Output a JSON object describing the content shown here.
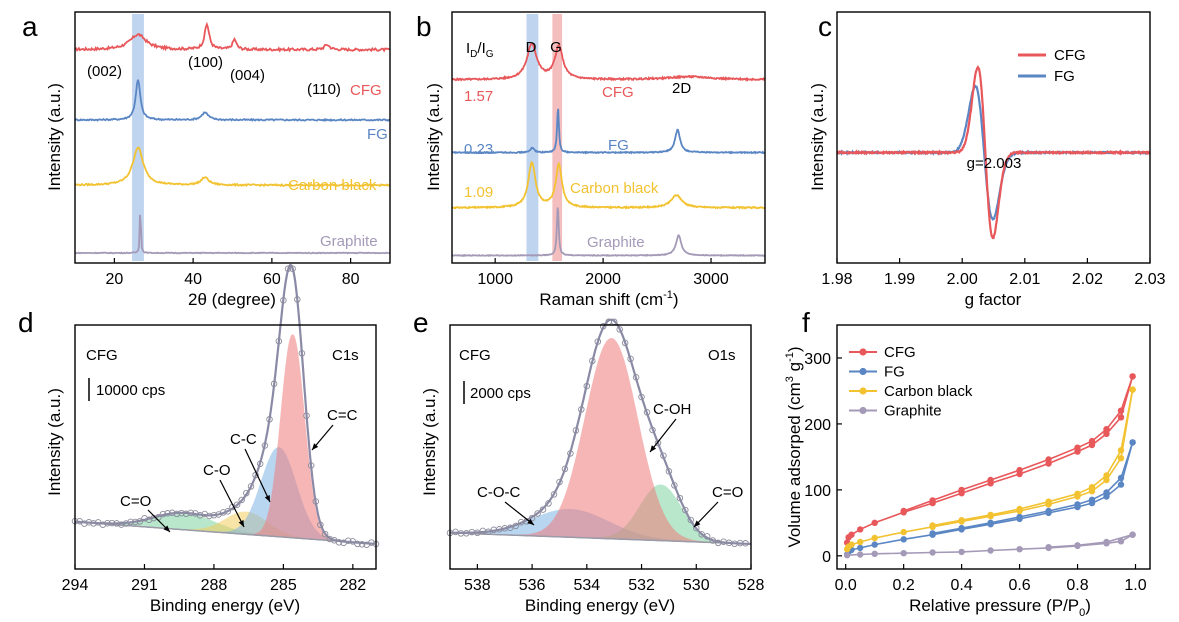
{
  "colors": {
    "cfg": "#e8575a",
    "fg": "#5a86c4",
    "cb": "#f2c230",
    "gr": "#a49ab8",
    "band_blue": "#a9c6ea",
    "band_red": "#f0a8a8",
    "axis": "#000000",
    "envelope": "#8b8aa6"
  },
  "chart_data": [
    {
      "id": "a",
      "panel_label": "a",
      "type": "line",
      "title": "",
      "xlabel": "2θ (degree)",
      "ylabel": "Intensity (a.u.)",
      "xlim": [
        10,
        90
      ],
      "xticks": [
        20,
        40,
        60,
        80
      ],
      "yticks": false,
      "highlight_band": [
        24.5,
        27.5
      ],
      "series": [
        {
          "name": "CFG",
          "color_key": "cfg",
          "baseline": 0.85,
          "noise": 0.01,
          "peaks": [
            [
              26,
              0.06,
              2.5
            ],
            [
              43.5,
              0.1,
              0.7
            ],
            [
              50.5,
              0.04,
              0.6
            ],
            [
              74,
              0.02,
              0.8
            ]
          ]
        },
        {
          "name": "FG",
          "color_key": "fg",
          "baseline": 0.57,
          "noise": 0.006,
          "peaks": [
            [
              26,
              0.16,
              0.7
            ],
            [
              43,
              0.03,
              1.0
            ]
          ]
        },
        {
          "name": "Carbon black",
          "color_key": "cb",
          "baseline": 0.31,
          "noise": 0.006,
          "peaks": [
            [
              26,
              0.15,
              1.6
            ],
            [
              43,
              0.03,
              1.2
            ]
          ]
        },
        {
          "name": "Graphite",
          "color_key": "gr",
          "baseline": 0.04,
          "noise": 0.003,
          "peaks": [
            [
              26.6,
              0.26,
              0.12
            ]
          ]
        }
      ],
      "labels": {
        "series": [
          "CFG",
          "FG",
          "Carbon black",
          "Graphite"
        ],
        "peaks": [
          "(002)",
          "(100)",
          "(004)",
          "(110)"
        ]
      }
    },
    {
      "id": "b",
      "panel_label": "b",
      "type": "line",
      "title": "",
      "xlabel": "Raman shift (cm",
      "xlabel_sup": "-1",
      "xlabel_end": ")",
      "ylabel": "Intensity (a.u.)",
      "xlim": [
        600,
        3500
      ],
      "xticks": [
        1000,
        2000,
        3000
      ],
      "yticks": false,
      "bands": [
        {
          "name": "D",
          "range": [
            1290,
            1400
          ],
          "color_key": "band_blue"
        },
        {
          "name": "G",
          "range": [
            1530,
            1620
          ],
          "color_key": "band_red"
        }
      ],
      "ratio_header": "I",
      "ratio_sub_d": "D",
      "ratio_slash": "/I",
      "ratio_sub_g": "G",
      "ratios": [
        "1.57",
        "0.23",
        "1.09"
      ],
      "series": [
        {
          "name": "CFG",
          "id_ig": "1.57",
          "color_key": "cfg",
          "baseline": 0.73,
          "noise": 0.006,
          "peaks": [
            [
              1340,
              0.14,
              55
            ],
            [
              1590,
              0.13,
              45
            ],
            [
              2800,
              0.012,
              250
            ]
          ]
        },
        {
          "name": "FG",
          "id_ig": "0.23",
          "color_key": "fg",
          "baseline": 0.44,
          "noise": 0.004,
          "peaks": [
            [
              1345,
              0.02,
              20
            ],
            [
              1582,
              0.18,
              10
            ],
            [
              2690,
              0.09,
              28
            ]
          ]
        },
        {
          "name": "Carbon black",
          "id_ig": "1.09",
          "color_key": "cb",
          "baseline": 0.22,
          "noise": 0.005,
          "peaks": [
            [
              1340,
              0.18,
              40
            ],
            [
              1590,
              0.17,
              35
            ],
            [
              2680,
              0.05,
              60
            ]
          ]
        },
        {
          "name": "Graphite",
          "color_key": "gr",
          "baseline": 0.03,
          "noise": 0.003,
          "peaks": [
            [
              1580,
              0.2,
              10
            ],
            [
              2700,
              0.08,
              30
            ]
          ]
        }
      ],
      "labels": {
        "series": [
          "CFG",
          "FG",
          "Carbon black",
          "Graphite"
        ],
        "extra": "2D"
      }
    },
    {
      "id": "c",
      "panel_label": "c",
      "type": "line",
      "title": "",
      "xlabel": "g factor",
      "ylabel": "Intensity (a.u.)",
      "xlim": [
        1.98,
        2.03
      ],
      "xticks": [
        "1.98",
        "1.99",
        "2.00",
        "2.01",
        "2.02",
        "2.03"
      ],
      "yticks": false,
      "annotation": "g=2.003",
      "legend": {
        "position": "top-right",
        "entries": [
          "CFG",
          "FG"
        ]
      },
      "series": [
        {
          "name": "CFG",
          "color_key": "cfg",
          "center": 2.0037,
          "amplitude": 1.0,
          "width": 0.0012
        },
        {
          "name": "FG",
          "color_key": "fg",
          "center": 2.0035,
          "amplitude": 0.78,
          "width": 0.0014
        }
      ]
    },
    {
      "id": "d",
      "panel_label": "d",
      "type": "area",
      "title": "",
      "xlabel": "Binding energy (eV)",
      "ylabel": "Intensity (a.u.)",
      "xlim": [
        294,
        281
      ],
      "xticks": [
        294,
        291,
        288,
        285,
        282
      ],
      "yticks": false,
      "sample": "CFG",
      "core_level": "C1s",
      "scale_bar": "10000 cps",
      "components": [
        {
          "name": "C=C",
          "center": 284.6,
          "height": 0.73,
          "width": 0.5,
          "color": "#ef7c7c"
        },
        {
          "name": "C-C",
          "center": 285.2,
          "height": 0.32,
          "width": 0.75,
          "color": "#7fb6e4"
        },
        {
          "name": "C-O",
          "center": 286.6,
          "height": 0.08,
          "width": 0.9,
          "color": "#f3cf5e"
        },
        {
          "name": "C=O",
          "center": 289.3,
          "height": 0.06,
          "width": 1.3,
          "color": "#7fd4a3"
        }
      ],
      "background": {
        "high_be": 0.08,
        "low_be": 0.0
      }
    },
    {
      "id": "e",
      "panel_label": "e",
      "type": "area",
      "title": "",
      "xlabel": "Binding energy (eV)",
      "ylabel": "Intensity (a.u.)",
      "xlim": [
        539,
        528
      ],
      "xticks": [
        538,
        536,
        534,
        532,
        530,
        528
      ],
      "yticks": false,
      "sample": "CFG",
      "core_level": "O1s",
      "scale_bar": "2000 cps",
      "components": [
        {
          "name": "C-OH",
          "center": 533.1,
          "height": 0.72,
          "width": 0.95,
          "color": "#ef7c7c"
        },
        {
          "name": "C=O",
          "center": 531.3,
          "height": 0.2,
          "width": 0.75,
          "color": "#7fd4a3"
        },
        {
          "name": "C-O-C",
          "center": 534.6,
          "height": 0.1,
          "width": 1.4,
          "color": "#7fb6e4"
        }
      ],
      "background": {
        "high_be": 0.04,
        "low_be": 0.0
      }
    },
    {
      "id": "f",
      "panel_label": "f",
      "type": "line",
      "title": "",
      "xlabel": "Relative pressure (P/P",
      "xlabel_sub": "0",
      "xlabel_end": ")",
      "ylabel": "Volume adsorped (cm",
      "ylabel_sup": "3",
      "ylabel_mid": " g",
      "ylabel_sup2": "-1",
      "ylabel_end": ")",
      "xlim": [
        -0.03,
        1.05
      ],
      "ylim": [
        -20,
        350
      ],
      "xticks": [
        "0.0",
        "0.2",
        "0.4",
        "0.6",
        "0.8",
        "1.0"
      ],
      "yticks": [
        "0",
        "100",
        "200",
        "300"
      ],
      "legend": {
        "position": "top-left",
        "entries": [
          "CFG",
          "FG",
          "Carbon black",
          "Graphite"
        ]
      },
      "series": [
        {
          "name": "CFG",
          "color_key": "cfg",
          "adsorption": [
            [
              0.005,
              20
            ],
            [
              0.01,
              28
            ],
            [
              0.02,
              32
            ],
            [
              0.05,
              40
            ],
            [
              0.1,
              50
            ],
            [
              0.2,
              66
            ],
            [
              0.3,
              80
            ],
            [
              0.4,
              95
            ],
            [
              0.5,
              110
            ],
            [
              0.6,
              124
            ],
            [
              0.7,
              140
            ],
            [
              0.8,
              158
            ],
            [
              0.85,
              168
            ],
            [
              0.9,
              185
            ],
            [
              0.95,
              210
            ],
            [
              0.99,
              272
            ]
          ],
          "desorption": [
            [
              0.99,
              272
            ],
            [
              0.95,
              220
            ],
            [
              0.9,
              192
            ],
            [
              0.85,
              174
            ],
            [
              0.8,
              164
            ],
            [
              0.7,
              146
            ],
            [
              0.6,
              130
            ],
            [
              0.5,
              115
            ],
            [
              0.4,
              100
            ],
            [
              0.3,
              84
            ],
            [
              0.2,
              68
            ]
          ]
        },
        {
          "name": "FG",
          "color_key": "fg",
          "adsorption": [
            [
              0.005,
              2
            ],
            [
              0.01,
              6
            ],
            [
              0.02,
              9
            ],
            [
              0.05,
              12
            ],
            [
              0.1,
              17
            ],
            [
              0.2,
              25
            ],
            [
              0.3,
              32
            ],
            [
              0.4,
              40
            ],
            [
              0.5,
              48
            ],
            [
              0.6,
              56
            ],
            [
              0.7,
              65
            ],
            [
              0.8,
              74
            ],
            [
              0.85,
              80
            ],
            [
              0.9,
              90
            ],
            [
              0.95,
              108
            ],
            [
              0.99,
              172
            ]
          ],
          "desorption": [
            [
              0.99,
              172
            ],
            [
              0.95,
              118
            ],
            [
              0.9,
              96
            ],
            [
              0.85,
              85
            ],
            [
              0.8,
              78
            ],
            [
              0.7,
              68
            ],
            [
              0.6,
              59
            ],
            [
              0.5,
              50
            ],
            [
              0.4,
              42
            ],
            [
              0.3,
              34
            ]
          ]
        },
        {
          "name": "Carbon black",
          "color_key": "cb",
          "adsorption": [
            [
              0.005,
              10
            ],
            [
              0.01,
              14
            ],
            [
              0.02,
              17
            ],
            [
              0.05,
              21
            ],
            [
              0.1,
              27
            ],
            [
              0.2,
              36
            ],
            [
              0.3,
              44
            ],
            [
              0.4,
              52
            ],
            [
              0.5,
              60
            ],
            [
              0.6,
              68
            ],
            [
              0.7,
              78
            ],
            [
              0.8,
              90
            ],
            [
              0.85,
              98
            ],
            [
              0.9,
              115
            ],
            [
              0.95,
              148
            ],
            [
              0.99,
              252
            ]
          ],
          "desorption": [
            [
              0.99,
              252
            ],
            [
              0.95,
              160
            ],
            [
              0.9,
              122
            ],
            [
              0.85,
              104
            ],
            [
              0.8,
              94
            ],
            [
              0.7,
              82
            ],
            [
              0.6,
              71
            ],
            [
              0.5,
              62
            ],
            [
              0.4,
              54
            ],
            [
              0.3,
              46
            ]
          ]
        },
        {
          "name": "Graphite",
          "color_key": "gr",
          "adsorption": [
            [
              0.005,
              1
            ],
            [
              0.05,
              2
            ],
            [
              0.1,
              3
            ],
            [
              0.2,
              4
            ],
            [
              0.3,
              5
            ],
            [
              0.4,
              6
            ],
            [
              0.5,
              8
            ],
            [
              0.6,
              10
            ],
            [
              0.7,
              12
            ],
            [
              0.8,
              15
            ],
            [
              0.9,
              19
            ],
            [
              0.95,
              22
            ],
            [
              0.99,
              32
            ]
          ],
          "desorption": [
            [
              0.99,
              32
            ],
            [
              0.9,
              21
            ],
            [
              0.8,
              16
            ],
            [
              0.7,
              13
            ]
          ]
        }
      ]
    }
  ]
}
